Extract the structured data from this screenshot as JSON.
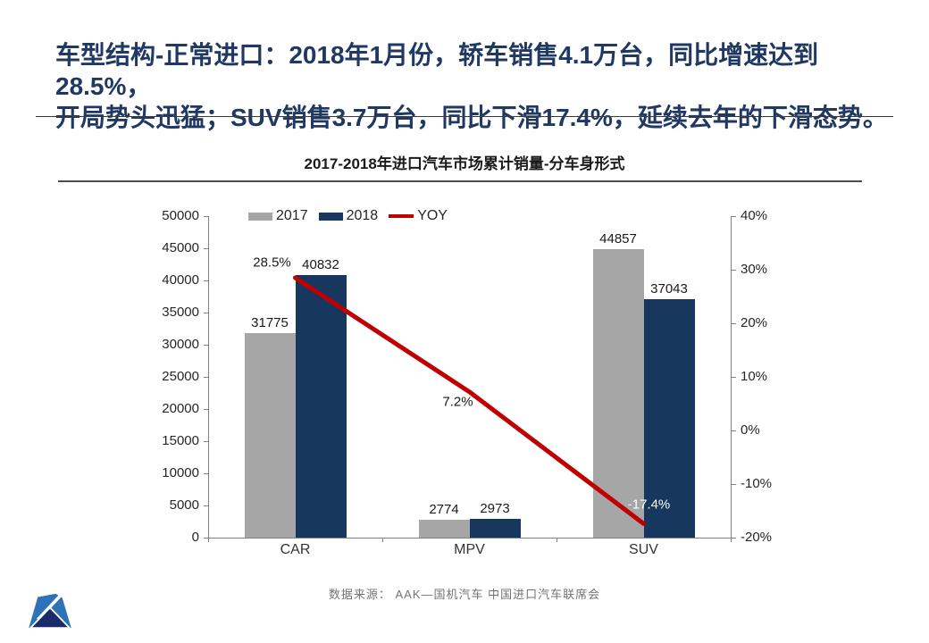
{
  "page": {
    "title": "车型结构-正常进口：2018年1月份，轿车销售4.1万台，同比增速达到28.5%，\n开局势头迅猛；SUV销售3.7万台，同比下滑17.4%，延续去年的下滑态势。",
    "source": "数据来源： AAK—国机汽车 中国进口汽车联席会",
    "logo": "mountain-logo"
  },
  "colors": {
    "title_text": "#1F3864",
    "bar_2017": "#A6A6A6",
    "bar_2018": "#17375E",
    "yoy_line": "#C00000",
    "axis_line": "#808080",
    "yoy_label_default": "#1A1A1A",
    "yoy_label_suv": "#FFFFFF"
  },
  "chart_data": {
    "type": "bar",
    "subtype": "grouped-bars-with-yoy-line",
    "title": "2017-2018年进口汽车市场累计销量-分车身形式",
    "categories": [
      "CAR",
      "MPV",
      "SUV"
    ],
    "series": [
      {
        "name": "2017",
        "type": "bar",
        "axis": "left",
        "values": [
          31775,
          2774,
          44857
        ]
      },
      {
        "name": "2018",
        "type": "bar",
        "axis": "left",
        "values": [
          40832,
          2973,
          37043
        ]
      },
      {
        "name": "YOY",
        "type": "line",
        "axis": "right",
        "values": [
          28.5,
          7.2,
          -17.4
        ],
        "labels": [
          "28.5%",
          "7.2%",
          "-17.4%"
        ]
      }
    ],
    "left_axis": {
      "min": 0,
      "max": 50000,
      "step": 5000
    },
    "right_axis": {
      "min": -20,
      "max": 40,
      "step": 10,
      "suffix": "%"
    },
    "grid": false,
    "legend_position": "top"
  }
}
